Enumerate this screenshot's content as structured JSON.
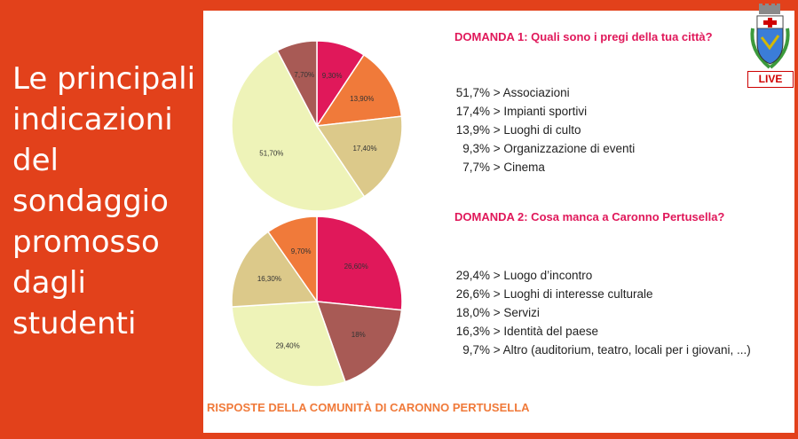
{
  "side_title": "Le principali\nindicazioni\ndel\nsondaggio\npromosso\ndagli\nstudenti",
  "badge": {
    "label": "LIVE"
  },
  "logo": {
    "icon": "coat-of-arms-icon"
  },
  "questions": [
    {
      "title": "DOMANDA 1: Quali sono i pregi della tua città?"
    },
    {
      "title": "DOMANDA 2: Cosa manca a Caronno Pertusella?"
    }
  ],
  "footer": {
    "title": "RISPOSTE DELLA COMUNITÀ DI CARONNO PERTUSELLA"
  },
  "chart_data": [
    {
      "type": "pie",
      "slices": [
        {
          "label": "9,30%",
          "value": 9.3,
          "color": "#e0185a"
        },
        {
          "label": "13,90%",
          "value": 13.9,
          "color": "#f07a3a"
        },
        {
          "label": "17,40%",
          "value": 17.4,
          "color": "#dcc98a"
        },
        {
          "label": "51,70%",
          "value": 51.7,
          "color": "#eef3b8"
        },
        {
          "label": "7,70%",
          "value": 7.7,
          "color": "#a85a55"
        }
      ],
      "answers": [
        {
          "pct": "51,7%",
          "text": "> Associazioni"
        },
        {
          "pct": "17,4%",
          "text": "> Impianti sportivi"
        },
        {
          "pct": "13,9%",
          "text": "> Luoghi di culto"
        },
        {
          "pct": "9,3%",
          "text": "> Organizzazione di eventi"
        },
        {
          "pct": "7,7%",
          "text": "> Cinema"
        }
      ]
    },
    {
      "type": "pie",
      "slices": [
        {
          "label": "26,60%",
          "value": 26.6,
          "color": "#e0185a"
        },
        {
          "label": "18%",
          "value": 18.0,
          "color": "#a85a55"
        },
        {
          "label": "29,40%",
          "value": 29.4,
          "color": "#eef3b8"
        },
        {
          "label": "16,30%",
          "value": 16.3,
          "color": "#dcc98a"
        },
        {
          "label": "9,70%",
          "value": 9.7,
          "color": "#f07a3a"
        }
      ],
      "answers": [
        {
          "pct": "29,4%",
          "text": "> Luogo d’incontro"
        },
        {
          "pct": "26,6%",
          "text": "> Luoghi di interesse culturale"
        },
        {
          "pct": "18,0%",
          "text": "> Servizi"
        },
        {
          "pct": "16,3%",
          "text": "> Identità del paese"
        },
        {
          "pct": "9,7%",
          "text": "> Altro (auditorium, teatro, locali per i giovani, ...)"
        }
      ]
    }
  ]
}
